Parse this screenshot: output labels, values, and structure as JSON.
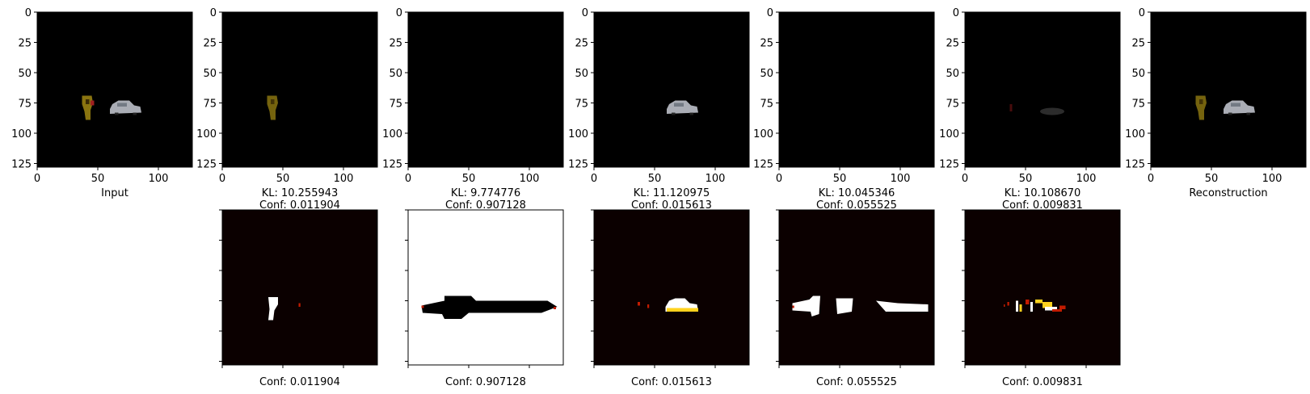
{
  "chart_data": {
    "type": "image-grid",
    "colors": {
      "panel_background": "#000000",
      "mask_background": "#0b0000",
      "object_a": "#8a7410",
      "object_b": "#b8bcc4",
      "heat_white": "#ffffff",
      "heat_yellow": "#ffd21e",
      "heat_red": "#c21b00"
    },
    "image_axes": {
      "xlim": [
        0,
        128
      ],
      "ylim": [
        128,
        0
      ],
      "xticks": [
        "0",
        "50",
        "100"
      ],
      "yticks": [
        "0",
        "25",
        "50",
        "75",
        "100",
        "125"
      ]
    },
    "top_row": [
      {
        "labels": [
          "Input"
        ],
        "content": [
          "object_a",
          "object_b"
        ]
      },
      {
        "labels": [
          "KL: 10.255943",
          "Conf: 0.011904"
        ],
        "content": [
          "object_a"
        ]
      },
      {
        "labels": [
          "KL: 9.774776",
          "Conf: 0.907128"
        ],
        "content": []
      },
      {
        "labels": [
          "KL: 11.120975",
          "Conf: 0.015613"
        ],
        "content": [
          "object_b"
        ]
      },
      {
        "labels": [
          "KL: 10.045346",
          "Conf: 0.055525"
        ],
        "content": []
      },
      {
        "labels": [
          "KL: 10.108670",
          "Conf: 0.009831"
        ],
        "content": [
          "faint"
        ]
      },
      {
        "labels": [
          "Reconstruction"
        ],
        "content": [
          "object_a",
          "object_b"
        ]
      }
    ],
    "bottom_row": [
      {
        "label": "Conf: 0.011904",
        "mask": "object_a"
      },
      {
        "label": "Conf: 0.907128",
        "mask": "inverse"
      },
      {
        "label": "Conf: 0.015613",
        "mask": "object_b"
      },
      {
        "label": "Conf: 0.055525",
        "mask": "background_patches"
      },
      {
        "label": "Conf: 0.009831",
        "mask": "noisy"
      }
    ]
  }
}
